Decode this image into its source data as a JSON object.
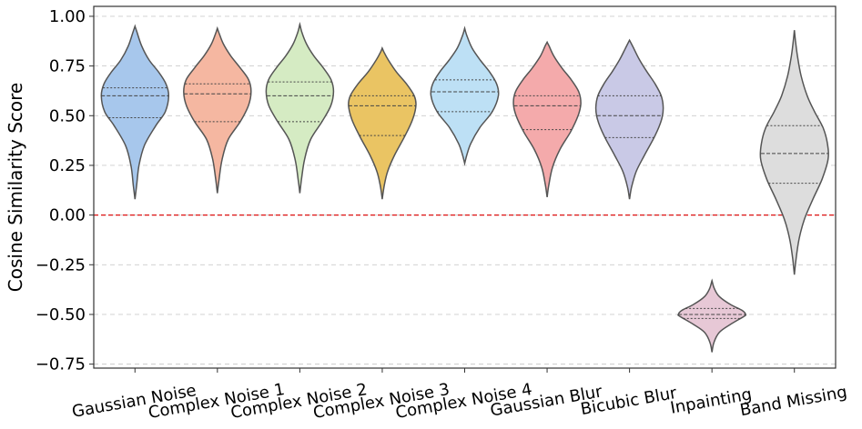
{
  "chart_data": {
    "type": "violin",
    "ylabel": "Cosine Similarity Score",
    "xlabel": "",
    "title": "",
    "ylim": [
      -0.77,
      1.05
    ],
    "yticks": [
      1.0,
      0.75,
      0.5,
      0.25,
      0.0,
      -0.25,
      -0.5,
      -0.75
    ],
    "ytick_labels": [
      "1.00",
      "0.75",
      "0.50",
      "0.25",
      "0.00",
      "−0.25",
      "−0.50",
      "−0.75"
    ],
    "grid": "horizontal dashed",
    "reference_line": {
      "y": 0.0,
      "color": "#dd1111",
      "style": "dashed"
    },
    "categories": [
      "Gaussian Noise",
      "Complex Noise 1",
      "Complex Noise 2",
      "Complex Noise 3",
      "Complex Noise 4",
      "Gaussian Blur",
      "Bicubic Blur",
      "Inpainting",
      "Band Missing"
    ],
    "violins": [
      {
        "name": "Gaussian Noise",
        "color": "#a7c7ec",
        "min": 0.08,
        "max": 0.95,
        "q1": 0.49,
        "median": 0.6,
        "q3": 0.64,
        "profile": [
          [
            0.08,
            0.0
          ],
          [
            0.15,
            0.05
          ],
          [
            0.25,
            0.12
          ],
          [
            0.35,
            0.28
          ],
          [
            0.45,
            0.62
          ],
          [
            0.52,
            0.9
          ],
          [
            0.6,
            1.0
          ],
          [
            0.66,
            0.92
          ],
          [
            0.72,
            0.7
          ],
          [
            0.78,
            0.42
          ],
          [
            0.85,
            0.2
          ],
          [
            0.92,
            0.06
          ],
          [
            0.95,
            0.0
          ]
        ]
      },
      {
        "name": "Complex Noise 1",
        "color": "#f5b7a1",
        "min": 0.11,
        "max": 0.94,
        "q1": 0.47,
        "median": 0.61,
        "q3": 0.66,
        "profile": [
          [
            0.11,
            0.0
          ],
          [
            0.18,
            0.05
          ],
          [
            0.28,
            0.14
          ],
          [
            0.38,
            0.32
          ],
          [
            0.47,
            0.68
          ],
          [
            0.55,
            0.92
          ],
          [
            0.62,
            1.0
          ],
          [
            0.68,
            0.93
          ],
          [
            0.74,
            0.68
          ],
          [
            0.8,
            0.4
          ],
          [
            0.86,
            0.18
          ],
          [
            0.91,
            0.06
          ],
          [
            0.94,
            0.0
          ]
        ]
      },
      {
        "name": "Complex Noise 2",
        "color": "#d5ebc3",
        "min": 0.11,
        "max": 0.96,
        "q1": 0.47,
        "median": 0.6,
        "q3": 0.67,
        "profile": [
          [
            0.11,
            0.0
          ],
          [
            0.18,
            0.05
          ],
          [
            0.28,
            0.14
          ],
          [
            0.38,
            0.32
          ],
          [
            0.47,
            0.66
          ],
          [
            0.55,
            0.92
          ],
          [
            0.62,
            1.0
          ],
          [
            0.68,
            0.93
          ],
          [
            0.74,
            0.7
          ],
          [
            0.8,
            0.42
          ],
          [
            0.86,
            0.2
          ],
          [
            0.92,
            0.06
          ],
          [
            0.96,
            0.0
          ]
        ]
      },
      {
        "name": "Complex Noise 3",
        "color": "#eac463",
        "min": 0.08,
        "max": 0.84,
        "q1": 0.4,
        "median": 0.55,
        "q3": 0.6,
        "profile": [
          [
            0.08,
            0.0
          ],
          [
            0.15,
            0.06
          ],
          [
            0.22,
            0.16
          ],
          [
            0.3,
            0.36
          ],
          [
            0.4,
            0.68
          ],
          [
            0.48,
            0.9
          ],
          [
            0.55,
            1.0
          ],
          [
            0.6,
            0.95
          ],
          [
            0.66,
            0.72
          ],
          [
            0.72,
            0.42
          ],
          [
            0.78,
            0.18
          ],
          [
            0.82,
            0.05
          ],
          [
            0.84,
            0.0
          ]
        ]
      },
      {
        "name": "Complex Noise 4",
        "color": "#bde0f5",
        "min": 0.26,
        "max": 0.94,
        "q1": 0.52,
        "median": 0.62,
        "q3": 0.68,
        "profile": [
          [
            0.26,
            0.0
          ],
          [
            0.3,
            0.06
          ],
          [
            0.36,
            0.18
          ],
          [
            0.44,
            0.45
          ],
          [
            0.52,
            0.82
          ],
          [
            0.6,
            1.0
          ],
          [
            0.66,
            0.95
          ],
          [
            0.72,
            0.74
          ],
          [
            0.78,
            0.46
          ],
          [
            0.84,
            0.22
          ],
          [
            0.9,
            0.07
          ],
          [
            0.94,
            0.0
          ]
        ]
      },
      {
        "name": "Gaussian Blur",
        "color": "#f4aaab",
        "min": 0.09,
        "max": 0.87,
        "q1": 0.43,
        "median": 0.55,
        "q3": 0.6,
        "profile": [
          [
            0.09,
            0.0
          ],
          [
            0.15,
            0.05
          ],
          [
            0.24,
            0.16
          ],
          [
            0.33,
            0.38
          ],
          [
            0.42,
            0.7
          ],
          [
            0.5,
            0.92
          ],
          [
            0.56,
            1.0
          ],
          [
            0.62,
            0.94
          ],
          [
            0.68,
            0.72
          ],
          [
            0.74,
            0.44
          ],
          [
            0.8,
            0.2
          ],
          [
            0.85,
            0.06
          ],
          [
            0.87,
            0.0
          ]
        ]
      },
      {
        "name": "Bicubic Blur",
        "color": "#c9c9e6",
        "min": 0.08,
        "max": 0.88,
        "q1": 0.39,
        "median": 0.5,
        "q3": 0.6,
        "profile": [
          [
            0.08,
            0.0
          ],
          [
            0.14,
            0.06
          ],
          [
            0.22,
            0.2
          ],
          [
            0.3,
            0.44
          ],
          [
            0.4,
            0.76
          ],
          [
            0.48,
            0.95
          ],
          [
            0.54,
            1.0
          ],
          [
            0.6,
            0.94
          ],
          [
            0.66,
            0.76
          ],
          [
            0.72,
            0.52
          ],
          [
            0.78,
            0.3
          ],
          [
            0.84,
            0.12
          ],
          [
            0.88,
            0.0
          ]
        ]
      },
      {
        "name": "Inpainting",
        "color": "#e7c8d6",
        "min": -0.69,
        "max": -0.33,
        "q1": -0.52,
        "median": -0.5,
        "q3": -0.47,
        "profile": [
          [
            -0.69,
            0.0
          ],
          [
            -0.64,
            0.06
          ],
          [
            -0.59,
            0.22
          ],
          [
            -0.55,
            0.55
          ],
          [
            -0.51,
            0.95
          ],
          [
            -0.5,
            1.0
          ],
          [
            -0.48,
            0.9
          ],
          [
            -0.45,
            0.55
          ],
          [
            -0.41,
            0.22
          ],
          [
            -0.37,
            0.07
          ],
          [
            -0.33,
            0.0
          ]
        ]
      },
      {
        "name": "Band Missing",
        "color": "#dddddd",
        "min": -0.3,
        "max": 0.93,
        "q1": 0.16,
        "median": 0.31,
        "q3": 0.45,
        "profile": [
          [
            -0.3,
            0.0
          ],
          [
            -0.22,
            0.05
          ],
          [
            -0.12,
            0.14
          ],
          [
            -0.02,
            0.3
          ],
          [
            0.08,
            0.55
          ],
          [
            0.18,
            0.82
          ],
          [
            0.28,
            1.0
          ],
          [
            0.36,
            0.98
          ],
          [
            0.44,
            0.85
          ],
          [
            0.52,
            0.6
          ],
          [
            0.6,
            0.38
          ],
          [
            0.7,
            0.2
          ],
          [
            0.8,
            0.09
          ],
          [
            0.88,
            0.03
          ],
          [
            0.93,
            0.0
          ]
        ]
      }
    ]
  }
}
